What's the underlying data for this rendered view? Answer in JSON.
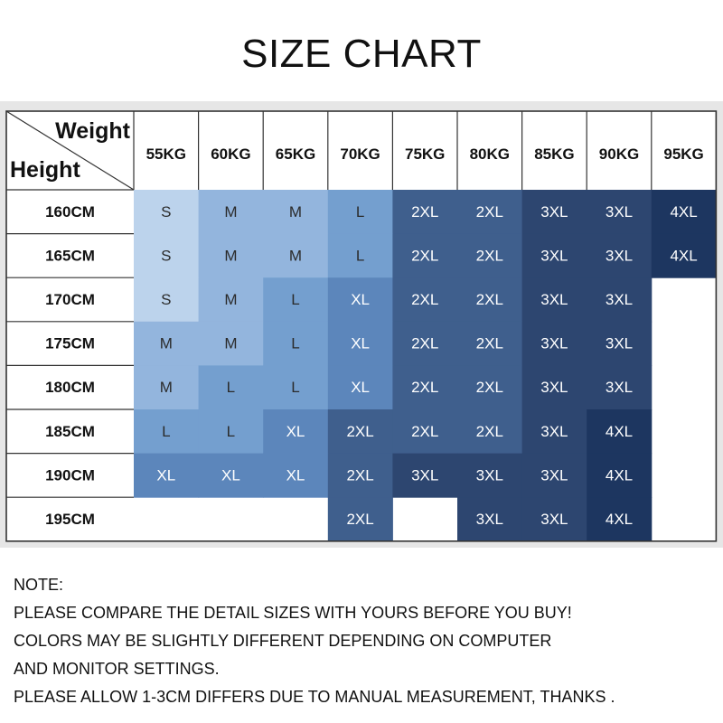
{
  "title": "SIZE CHART",
  "chart_data": {
    "type": "table",
    "corner": {
      "col_header": "Weight",
      "row_header": "Height"
    },
    "columns": [
      "55KG",
      "60KG",
      "65KG",
      "70KG",
      "75KG",
      "80KG",
      "85KG",
      "90KG",
      "95KG"
    ],
    "rows": [
      "160CM",
      "165CM",
      "170CM",
      "175CM",
      "180CM",
      "185CM",
      "190CM",
      "195CM"
    ],
    "cells": [
      [
        "S",
        "M",
        "M",
        "L",
        "2XL",
        "2XL",
        "3XL",
        "3XL",
        "4XL"
      ],
      [
        "S",
        "M",
        "M",
        "L",
        "2XL",
        "2XL",
        "3XL",
        "3XL",
        "4XL"
      ],
      [
        "S",
        "M",
        "L",
        "XL",
        "2XL",
        "2XL",
        "3XL",
        "3XL",
        ""
      ],
      [
        "M",
        "M",
        "L",
        "XL",
        "2XL",
        "2XL",
        "3XL",
        "3XL",
        ""
      ],
      [
        "M",
        "L",
        "L",
        "XL",
        "2XL",
        "2XL",
        "3XL",
        "3XL",
        ""
      ],
      [
        "L",
        "L",
        "XL",
        "2XL",
        "2XL",
        "2XL",
        "3XL",
        "4XL",
        ""
      ],
      [
        "XL",
        "XL",
        "XL",
        "2XL",
        "3XL",
        "3XL",
        "3XL",
        "4XL",
        ""
      ],
      [
        "",
        "",
        "",
        "2XL",
        "",
        "3XL",
        "3XL",
        "4XL",
        ""
      ]
    ],
    "size_colors": {
      "S": "#bcd3ec",
      "M": "#93b5dd",
      "L": "#749fcf",
      "XL": "#5c86bb",
      "2XL": "#3f5f8d",
      "3XL": "#2d4670",
      "4XL": "#1d3660"
    }
  },
  "note": {
    "lines": [
      "NOTE:",
      "PLEASE COMPARE THE DETAIL SIZES WITH YOURS BEFORE YOU BUY!",
      "COLORS MAY BE SLIGHTLY DIFFERENT DEPENDING ON COMPUTER",
      "AND MONITOR SETTINGS.",
      "PLEASE ALLOW 1-3CM DIFFERS DUE TO MANUAL MEASUREMENT, THANKS ."
    ]
  }
}
